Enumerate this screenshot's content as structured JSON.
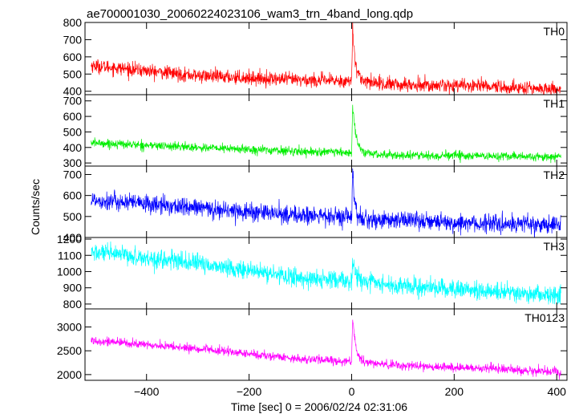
{
  "chart_data": {
    "type": "line",
    "title": "ae700001030_20060224023106_wam3_trn_4band_long.qdp",
    "xlabel": "Time [sec] 0 = 2006/02/24 02:31:06",
    "ylabel": "Counts/sec",
    "xlim": [
      -520,
      420
    ],
    "x_ticks": [
      -400,
      -200,
      0,
      200,
      400
    ],
    "x_tick_labels": [
      "−400",
      "−200",
      "0",
      "200",
      "400"
    ],
    "x_range_data": [
      -508,
      408
    ],
    "grid": false,
    "panels": [
      {
        "name": "TH0",
        "color": "#ff0000",
        "ylim": [
          380,
          800
        ],
        "y_ticks": [
          400,
          500,
          600,
          700,
          800
        ],
        "baseline_points": [
          [
            -508,
            550
          ],
          [
            -300,
            490
          ],
          [
            -100,
            465
          ],
          [
            -10,
            460
          ],
          [
            80,
            440
          ],
          [
            250,
            430
          ],
          [
            408,
            410
          ]
        ],
        "noise_sigma": 20,
        "burst": {
          "t0": 2,
          "peak": 800,
          "decay": 6
        }
      },
      {
        "name": "TH1",
        "color": "#00ee00",
        "ylim": [
          280,
          740
        ],
        "y_ticks": [
          300,
          400,
          500,
          600,
          700
        ],
        "baseline_points": [
          [
            -508,
            430
          ],
          [
            -300,
            400
          ],
          [
            -100,
            375
          ],
          [
            -10,
            365
          ],
          [
            80,
            350
          ],
          [
            250,
            345
          ],
          [
            408,
            340
          ]
        ],
        "noise_sigma": 14,
        "burst": {
          "t0": 2,
          "peak": 700,
          "decay": 7
        }
      },
      {
        "name": "TH2",
        "color": "#0000ff",
        "ylim": [
          400,
          740
        ],
        "y_ticks": [
          400,
          500,
          600,
          700
        ],
        "baseline_points": [
          [
            -508,
            580
          ],
          [
            -300,
            540
          ],
          [
            -100,
            505
          ],
          [
            -10,
            495
          ],
          [
            80,
            480
          ],
          [
            250,
            470
          ],
          [
            408,
            460
          ]
        ],
        "noise_sigma": 22,
        "burst": {
          "t0": 2,
          "peak": 740,
          "decay": 4
        }
      },
      {
        "name": "TH3",
        "color": "#00ffff",
        "ylim": [
          770,
          1210
        ],
        "y_ticks": [
          800,
          900,
          1000,
          1100,
          1200
        ],
        "baseline_points": [
          [
            -508,
            1120
          ],
          [
            -300,
            1050
          ],
          [
            -100,
            960
          ],
          [
            -10,
            940
          ],
          [
            80,
            915
          ],
          [
            250,
            880
          ],
          [
            408,
            850
          ]
        ],
        "noise_sigma": 28,
        "burst": {
          "t0": 2,
          "peak": 1090,
          "decay": 5
        }
      },
      {
        "name": "TH0123",
        "color": "#ff00ff",
        "ylim": [
          1880,
          3380
        ],
        "y_ticks": [
          2000,
          2500,
          3000
        ],
        "baseline_points": [
          [
            -508,
            2720
          ],
          [
            -300,
            2540
          ],
          [
            -100,
            2330
          ],
          [
            -10,
            2280
          ],
          [
            80,
            2200
          ],
          [
            250,
            2130
          ],
          [
            408,
            2060
          ]
        ],
        "noise_sigma": 45,
        "burst": {
          "t0": 2,
          "peak": 3320,
          "decay": 6
        }
      }
    ]
  }
}
